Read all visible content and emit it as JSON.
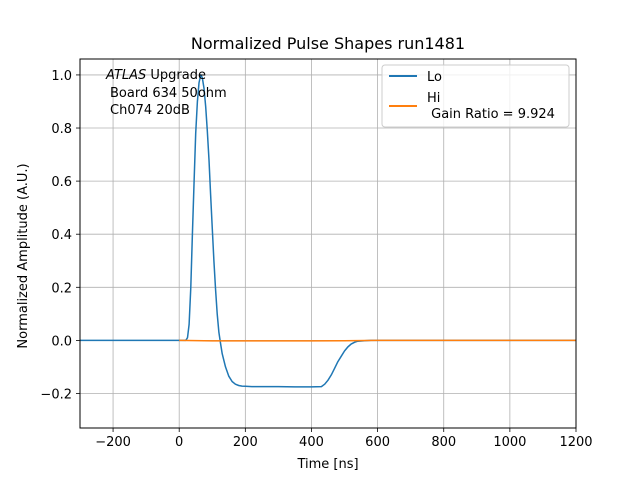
{
  "chart_data": {
    "type": "line",
    "title": "Normalized Pulse Shapes run1481",
    "xlabel": "Time [ns]",
    "ylabel": "Normalized Amplitude (A.U.)",
    "xlim": [
      -300,
      1200
    ],
    "ylim": [
      -0.33,
      1.06
    ],
    "xticks": [
      -200,
      0,
      200,
      400,
      600,
      800,
      1000,
      1200
    ],
    "xtick_labels": [
      "−200",
      "0",
      "200",
      "400",
      "600",
      "800",
      "1000",
      "1200"
    ],
    "yticks": [
      -0.2,
      0.0,
      0.2,
      0.4,
      0.6,
      0.8,
      1.0
    ],
    "ytick_labels": [
      "−0.2",
      "0.0",
      "0.2",
      "0.4",
      "0.6",
      "0.8",
      "1.0"
    ],
    "grid": true,
    "legend_position": "top-right",
    "annotation": {
      "atlas": "ATLAS",
      "upgrade": " Upgrade",
      "line2": "Board 634 50ohm",
      "line3": "Ch074 20dB"
    },
    "series": [
      {
        "name": "Lo",
        "color": "#1f77b4",
        "x": [
          -300,
          0,
          20,
          25,
          30,
          35,
          40,
          45,
          50,
          55,
          60,
          65,
          70,
          75,
          80,
          85,
          90,
          95,
          100,
          105,
          110,
          115,
          120,
          125,
          130,
          140,
          150,
          160,
          170,
          180,
          190,
          200,
          220,
          250,
          300,
          350,
          400,
          430,
          440,
          450,
          460,
          470,
          480,
          490,
          500,
          510,
          520,
          530,
          540,
          560,
          580,
          600,
          700,
          800,
          900,
          1000,
          1100,
          1200
        ],
        "y": [
          0,
          0,
          0,
          0.01,
          0.06,
          0.2,
          0.4,
          0.6,
          0.78,
          0.9,
          0.97,
          1.0,
          0.99,
          0.95,
          0.88,
          0.79,
          0.68,
          0.55,
          0.42,
          0.3,
          0.19,
          0.1,
          0.03,
          -0.01,
          -0.05,
          -0.1,
          -0.135,
          -0.155,
          -0.165,
          -0.17,
          -0.172,
          -0.173,
          -0.174,
          -0.174,
          -0.174,
          -0.175,
          -0.175,
          -0.174,
          -0.165,
          -0.15,
          -0.13,
          -0.105,
          -0.08,
          -0.06,
          -0.04,
          -0.025,
          -0.014,
          -0.007,
          -0.003,
          -0.001,
          0,
          0,
          0,
          0,
          0,
          0,
          0,
          0
        ]
      },
      {
        "name": "Hi\n Gain Ratio = 9.924",
        "name_lines": [
          "Hi",
          " Gain Ratio = 9.924"
        ],
        "color": "#ff7f0e",
        "x": [
          0,
          100,
          200,
          300,
          400,
          500,
          600,
          700,
          800,
          900,
          1000,
          1100,
          1200
        ],
        "y": [
          0,
          -0.002,
          -0.002,
          -0.002,
          -0.002,
          -0.001,
          0,
          0,
          0,
          0,
          0,
          0,
          0
        ]
      }
    ]
  }
}
